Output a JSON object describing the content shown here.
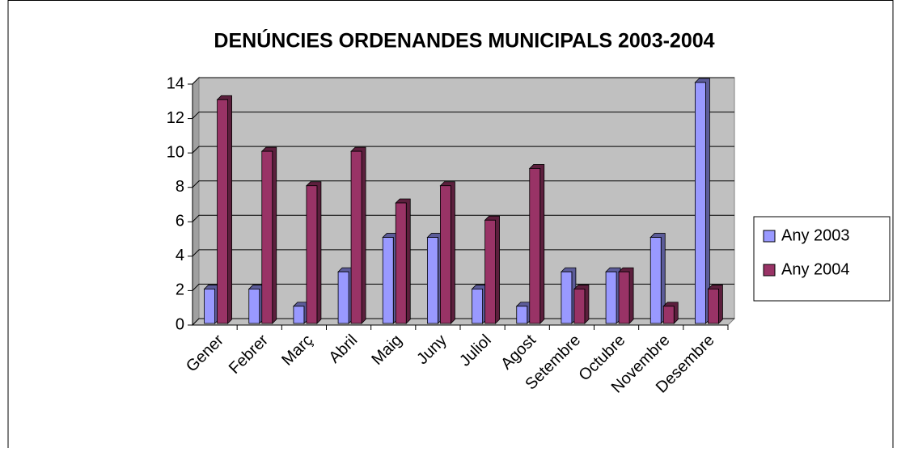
{
  "chart_data": {
    "type": "bar",
    "title": "DENÚNCIES ORDENANDES MUNICIPALS 2003-2004",
    "categories": [
      "Gener",
      "Febrer",
      "Març",
      "Abril",
      "Maig",
      "Juny",
      "Juliol",
      "Agost",
      "Setembre",
      "Octubre",
      "Novembre",
      "Desembre"
    ],
    "series": [
      {
        "name": "Any 2003",
        "color": "#9999ff",
        "values": [
          2,
          2,
          1,
          3,
          5,
          5,
          2,
          1,
          3,
          3,
          5,
          14
        ]
      },
      {
        "name": "Any 2004",
        "color": "#993366",
        "values": [
          13,
          10,
          8,
          10,
          7,
          8,
          6,
          9,
          2,
          3,
          1,
          2
        ]
      }
    ],
    "ylim": [
      0,
      14
    ],
    "yticks": [
      0,
      2,
      4,
      6,
      8,
      10,
      12,
      14
    ],
    "grid": true,
    "legend": "right"
  }
}
